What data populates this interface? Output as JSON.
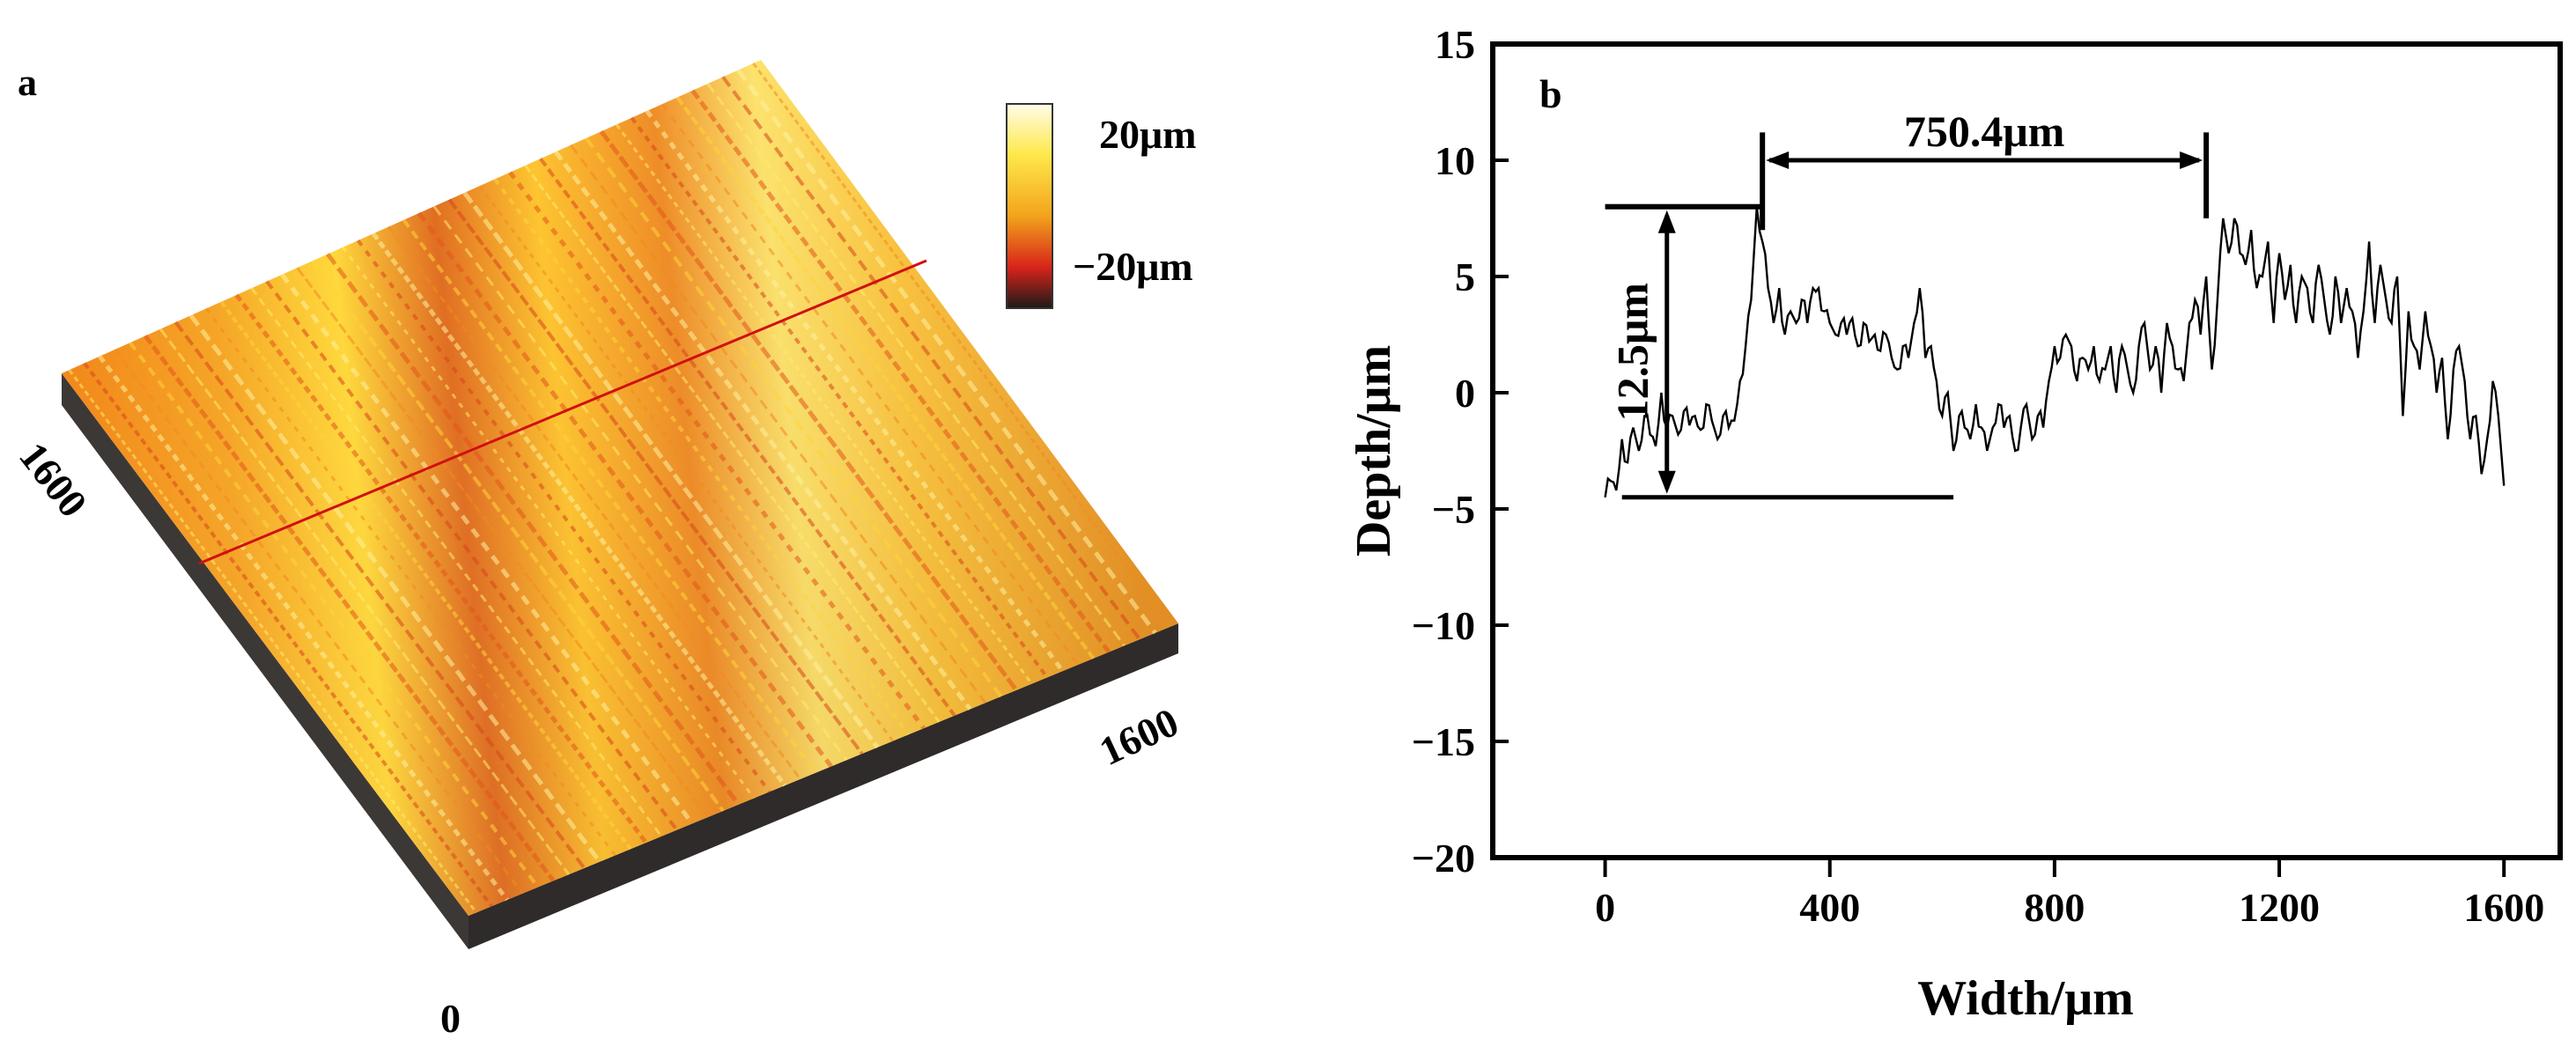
{
  "panel_a": {
    "label": "a",
    "legend": {
      "max_label": "20μm",
      "min_label": "−20μm"
    },
    "axis_label_left": "1600",
    "axis_label_right": "1600",
    "origin_label": "0",
    "colors": {
      "high": "#fff7c0",
      "mid_high": "#ffd21e",
      "mid": "#f6a020",
      "low": "#e0421c",
      "lowest": "#2a2220",
      "profile_line": "#d01010",
      "base": "#3a3a3a"
    }
  },
  "chart_data": {
    "type": "line",
    "panel_label": "b",
    "title": "",
    "xlabel": "Width/μm",
    "ylabel": "Depth/μm",
    "xlim": [
      -200,
      1700
    ],
    "ylim": [
      -20,
      15
    ],
    "xticks": [
      0,
      400,
      800,
      1200,
      1600
    ],
    "xtick_labels": [
      "0",
      "400",
      "800",
      "1200",
      "1600"
    ],
    "yticks": [
      -20,
      -15,
      -10,
      -5,
      0,
      5,
      10,
      15
    ],
    "ytick_labels": [
      "−20",
      "−15",
      "−10",
      "−5",
      "0",
      "5",
      "10",
      "15"
    ],
    "grid": false,
    "series": [
      {
        "name": "profile",
        "x": [
          0,
          10,
          20,
          30,
          40,
          50,
          60,
          70,
          80,
          90,
          100,
          110,
          120,
          130,
          140,
          150,
          160,
          170,
          180,
          190,
          200,
          210,
          220,
          230,
          240,
          250,
          260,
          270,
          280,
          290,
          300,
          310,
          320,
          330,
          340,
          350,
          360,
          370,
          380,
          390,
          400,
          410,
          420,
          430,
          440,
          450,
          460,
          470,
          480,
          490,
          500,
          510,
          520,
          530,
          540,
          550,
          560,
          570,
          580,
          590,
          600,
          610,
          620,
          630,
          640,
          650,
          660,
          670,
          680,
          690,
          700,
          710,
          720,
          730,
          740,
          750,
          760,
          770,
          780,
          790,
          800,
          810,
          820,
          830,
          840,
          850,
          860,
          870,
          880,
          890,
          900,
          910,
          920,
          930,
          940,
          950,
          960,
          970,
          980,
          990,
          1000,
          1010,
          1020,
          1030,
          1040,
          1050,
          1060,
          1070,
          1080,
          1090,
          1100,
          1110,
          1120,
          1130,
          1140,
          1150,
          1160,
          1170,
          1180,
          1190,
          1200,
          1210,
          1220,
          1230,
          1240,
          1250,
          1260,
          1270,
          1280,
          1290,
          1300,
          1310,
          1320,
          1330,
          1340,
          1350,
          1360,
          1370,
          1380,
          1390,
          1400,
          1410,
          1420,
          1430,
          1440,
          1450,
          1460,
          1470,
          1480,
          1490,
          1500,
          1510,
          1520,
          1530,
          1540,
          1550,
          1560,
          1570,
          1580,
          1590,
          1600
        ],
        "values": [
          -4.5,
          -3.8,
          -4.2,
          -2.0,
          -3.0,
          -1.5,
          -2.5,
          -1.0,
          -1.8,
          -2.3,
          0.0,
          -1.5,
          -1.0,
          -1.8,
          -0.8,
          -1.4,
          -1.0,
          -1.6,
          -0.5,
          -1.2,
          -2.0,
          -1.0,
          -1.5,
          -1.2,
          0.5,
          2.0,
          4.0,
          8.0,
          6.5,
          4.5,
          3.0,
          4.5,
          2.5,
          3.5,
          3.0,
          4.0,
          3.0,
          4.5,
          4.5,
          3.5,
          3.0,
          2.5,
          3.0,
          2.5,
          3.2,
          2.0,
          3.0,
          2.2,
          2.5,
          1.8,
          2.5,
          1.5,
          1.0,
          2.0,
          1.5,
          3.0,
          4.5,
          1.5,
          2.0,
          0.5,
          -1.0,
          0.0,
          -2.5,
          -1.0,
          -1.5,
          -2.0,
          -0.5,
          -1.5,
          -2.5,
          -1.5,
          -0.5,
          -1.5,
          -1.0,
          -2.5,
          -1.5,
          -0.5,
          -2.0,
          -1.0,
          -1.5,
          0.5,
          2.0,
          1.5,
          2.5,
          2.0,
          0.5,
          1.5,
          1.0,
          2.0,
          0.5,
          1.0,
          2.0,
          0.0,
          2.0,
          1.0,
          0.0,
          2.0,
          3.0,
          1.0,
          2.0,
          0.0,
          3.0,
          2.0,
          1.0,
          0.5,
          3.0,
          4.0,
          2.5,
          5.0,
          1.0,
          4.0,
          7.5,
          6.0,
          7.5,
          6.0,
          5.5,
          7.0,
          4.5,
          5.0,
          6.5,
          3.0,
          6.0,
          4.0,
          5.5,
          3.0,
          5.0,
          4.5,
          3.0,
          5.5,
          4.0,
          2.5,
          5.0,
          3.0,
          4.5,
          3.5,
          1.5,
          3.5,
          6.5,
          3.0,
          5.5,
          4.0,
          3.0,
          5.0,
          -1.0,
          3.5,
          2.0,
          1.0,
          3.5,
          2.0,
          0.0,
          1.5,
          -2.0,
          1.0,
          2.0,
          0.5,
          -2.0,
          -1.0,
          -3.5,
          -2.0,
          0.5,
          -1.0,
          -4.0
        ]
      }
    ],
    "annotations": [
      {
        "label": "750.4μm",
        "type": "horizontal_span",
        "x_start": 280,
        "x_end": 1070,
        "y": 10
      },
      {
        "label": "12.5μm",
        "type": "vertical_span",
        "x": 110,
        "y_low": -4.5,
        "y_high": 8.0
      }
    ]
  }
}
